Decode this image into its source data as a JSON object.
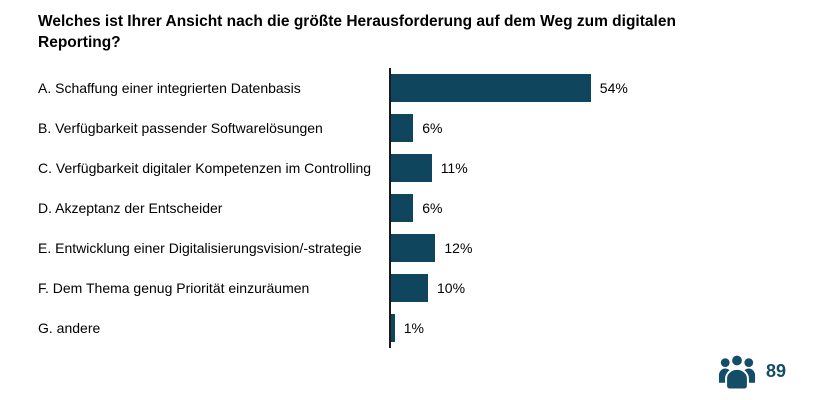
{
  "title": "Welches ist Ihrer Ansicht nach die größte Herausforderung auf dem Weg zum digitalen Reporting?",
  "chart_data": {
    "type": "bar",
    "orientation": "horizontal",
    "title": "Welches ist Ihrer Ansicht nach die größte Herausforderung auf dem Weg zum digitalen Reporting?",
    "categories": [
      "A. Schaffung einer integrierten Datenbasis",
      "B. Verfügbarkeit passender Softwarelösungen",
      "C. Verfügbarkeit digitaler Kompetenzen im Controlling",
      "D. Akzeptanz der Entscheider",
      "E. Entwicklung einer Digitalisierungsvision/-strategie",
      "F. Dem Thema genug Priorität einzuräumen",
      "G. andere"
    ],
    "values": [
      54,
      6,
      11,
      6,
      12,
      10,
      1
    ],
    "value_labels": [
      "54%",
      "6%",
      "11%",
      "6%",
      "12%",
      "10%",
      "1%"
    ],
    "xlabel": "",
    "ylabel": "",
    "xlim": [
      0,
      60
    ],
    "grid": false,
    "legend": false,
    "bar_color": "#0f465e",
    "axis_color": "#1a1a1a"
  },
  "footer": {
    "respondents_count": "89",
    "icon": "people-group-icon",
    "accent_color": "#144d66"
  }
}
